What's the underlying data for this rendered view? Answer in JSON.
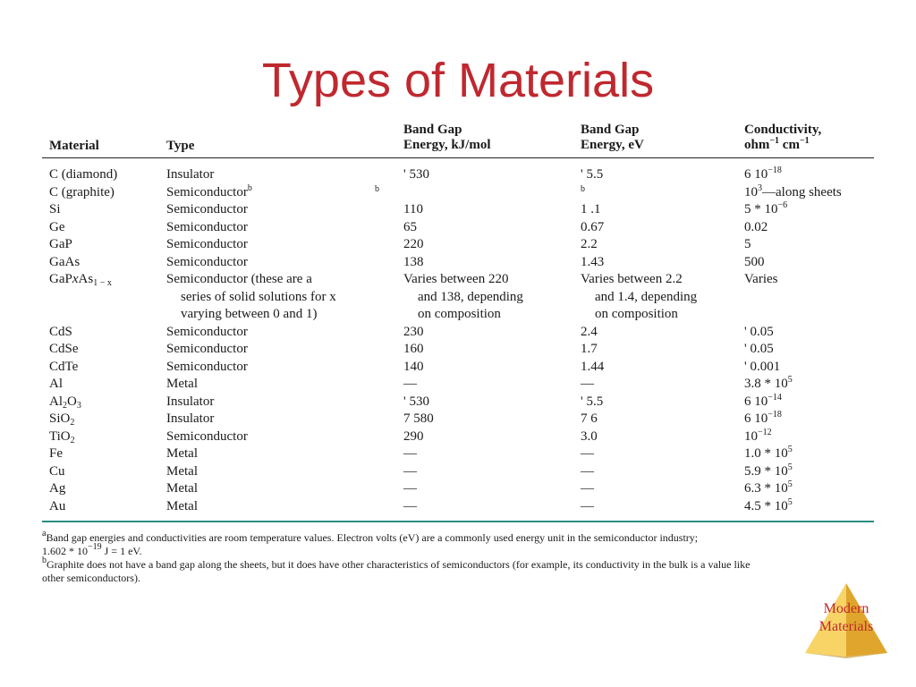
{
  "title": "Types of Materials",
  "headers": {
    "material": "Material",
    "type": "Type",
    "band_gap_kj": [
      "Band Gap",
      "Energy, kJ/mol"
    ],
    "band_gap_ev": [
      "Band Gap",
      "Energy, eV"
    ],
    "conductivity": [
      "Conductivity,",
      "ohm",
      "−1",
      " cm",
      "−1"
    ]
  },
  "rows": [
    {
      "material": [
        "C (diamond)"
      ],
      "type": [
        "Insulator"
      ],
      "kj": [
        "' 530"
      ],
      "ev": [
        "' 5.5"
      ],
      "cond": [
        [
          "6",
          "plain"
        ],
        [
          " 10",
          "plain"
        ],
        [
          "−18",
          "sup"
        ]
      ]
    },
    {
      "material": [
        "C (graphite)"
      ],
      "type": [
        "Semiconductor",
        "b"
      ],
      "kj": [
        "b"
      ],
      "ev": [
        "b"
      ],
      "cond": [
        [
          "10",
          "plain"
        ],
        [
          "3",
          "sup"
        ],
        [
          "—along sheets",
          "plain"
        ]
      ]
    },
    {
      "material": [
        "Si"
      ],
      "type": [
        "Semiconductor"
      ],
      "kj": [
        "110"
      ],
      "ev": [
        "1   .1"
      ],
      "cond": [
        [
          "5 * 10",
          "plain"
        ],
        [
          "−6",
          "sup"
        ]
      ]
    },
    {
      "material": [
        "Ge"
      ],
      "type": [
        "Semiconductor"
      ],
      "kj": [
        "65"
      ],
      "ev": [
        "0.67"
      ],
      "cond": [
        [
          "0.02",
          "plain"
        ]
      ]
    },
    {
      "material": [
        "GaP"
      ],
      "type": [
        "Semiconductor"
      ],
      "kj": [
        "220"
      ],
      "ev": [
        "2.2"
      ],
      "cond": [
        [
          "5",
          "plain"
        ]
      ]
    },
    {
      "material": [
        "GaAs"
      ],
      "type": [
        "Semiconductor"
      ],
      "kj": [
        "138"
      ],
      "ev": [
        "1.43"
      ],
      "cond": [
        [
          "500",
          "plain"
        ]
      ]
    },
    {
      "material": [
        [
          "GaP",
          "plain"
        ],
        [
          "x",
          "italic"
        ],
        [
          "As",
          "plain"
        ],
        [
          "1 − x",
          "sub"
        ]
      ],
      "type": [
        "Semiconductor (these are a",
        "series of solid solutions for x",
        "varying between 0 and 1)"
      ],
      "kj": [
        "Varies between 220",
        "and 138, depending",
        "on composition"
      ],
      "ev": [
        "Varies between 2.2",
        "and 1.4, depending",
        "on composition"
      ],
      "cond": [
        [
          "Varies",
          "plain"
        ]
      ]
    },
    {
      "material": [
        "CdS"
      ],
      "type": [
        "Semiconductor"
      ],
      "kj": [
        "230"
      ],
      "ev": [
        "2.4"
      ],
      "cond": [
        [
          "' 0.05",
          "plain"
        ]
      ]
    },
    {
      "material": [
        "CdSe"
      ],
      "type": [
        "Semiconductor"
      ],
      "kj": [
        "160"
      ],
      "ev": [
        "1.7"
      ],
      "cond": [
        [
          "' 0.05",
          "plain"
        ]
      ]
    },
    {
      "material": [
        "CdTe"
      ],
      "type": [
        "Semiconductor"
      ],
      "kj": [
        "140"
      ],
      "ev": [
        "1.44"
      ],
      "cond": [
        [
          "' 0.001",
          "plain"
        ]
      ]
    },
    {
      "material": [
        "Al"
      ],
      "type": [
        "Metal"
      ],
      "kj": [
        "—"
      ],
      "ev": [
        "—"
      ],
      "cond": [
        [
          "3.8 * 10",
          "plain"
        ],
        [
          "5",
          "sup"
        ]
      ]
    },
    {
      "material": [
        [
          "Al",
          "plain"
        ],
        [
          "2",
          "sub"
        ],
        [
          "O",
          "plain"
        ],
        [
          "3",
          "sub"
        ]
      ],
      "type": [
        "Insulator"
      ],
      "kj": [
        "' 530"
      ],
      "ev": [
        "' 5.5"
      ],
      "cond": [
        [
          "6",
          "plain"
        ],
        [
          " 10",
          "plain"
        ],
        [
          "−14",
          "sup"
        ]
      ]
    },
    {
      "material": [
        [
          "SiO",
          "plain"
        ],
        [
          "2",
          "sub"
        ]
      ],
      "type": [
        "Insulator"
      ],
      "kj": [
        "7 580"
      ],
      "ev": [
        "7 6"
      ],
      "cond": [
        [
          "6",
          "plain"
        ],
        [
          " 10",
          "plain"
        ],
        [
          "−18",
          "sup"
        ]
      ]
    },
    {
      "material": [
        [
          "TiO",
          "plain"
        ],
        [
          "2",
          "sub"
        ]
      ],
      "type": [
        "Semiconductor"
      ],
      "kj": [
        "290"
      ],
      "ev": [
        "3.0"
      ],
      "cond": [
        [
          "10",
          "plain"
        ],
        [
          "−12",
          "sup"
        ]
      ]
    },
    {
      "material": [
        "Fe"
      ],
      "type": [
        "Metal"
      ],
      "kj": [
        "—"
      ],
      "ev": [
        "—"
      ],
      "cond": [
        [
          "1.0 * 10",
          "plain"
        ],
        [
          "5",
          "sup"
        ]
      ]
    },
    {
      "material": [
        "Cu"
      ],
      "type": [
        "Metal"
      ],
      "kj": [
        "—"
      ],
      "ev": [
        "—"
      ],
      "cond": [
        [
          "5.9 * 10",
          "plain"
        ],
        [
          "5",
          "sup"
        ]
      ]
    },
    {
      "material": [
        "Ag"
      ],
      "type": [
        "Metal"
      ],
      "kj": [
        "—"
      ],
      "ev": [
        "—"
      ],
      "cond": [
        [
          "6.3 * 10",
          "plain"
        ],
        [
          "5",
          "sup"
        ]
      ]
    },
    {
      "material": [
        "Au"
      ],
      "type": [
        "Metal"
      ],
      "kj": [
        "—"
      ],
      "ev": [
        "—"
      ],
      "cond": [
        [
          "4.5 * 10",
          "plain"
        ],
        [
          "5",
          "sup"
        ]
      ]
    }
  ],
  "footnotes": {
    "a_mark": "a",
    "a_line1": "Band gap energies and conductivities are room temperature values. Electron volts (eV) are a commonly used energy unit in the semiconductor industry;",
    "a_line2_pre": "1.602 * 10",
    "a_line2_exp": "−19",
    "a_line2_post": " J = 1 eV.",
    "b_mark": "b",
    "b_line1": "Graphite does not have a band gap along the sheets, but it does have other characteristics of semiconductors (for example, its conductivity in the bulk is a value like",
    "b_line2": "other semiconductors)."
  },
  "badge": {
    "line1": "Modern",
    "line2": "Materials"
  },
  "colors": {
    "title": "#c0282f",
    "rule": "#2a8c7e",
    "badge_fill": "#f3c64a"
  }
}
